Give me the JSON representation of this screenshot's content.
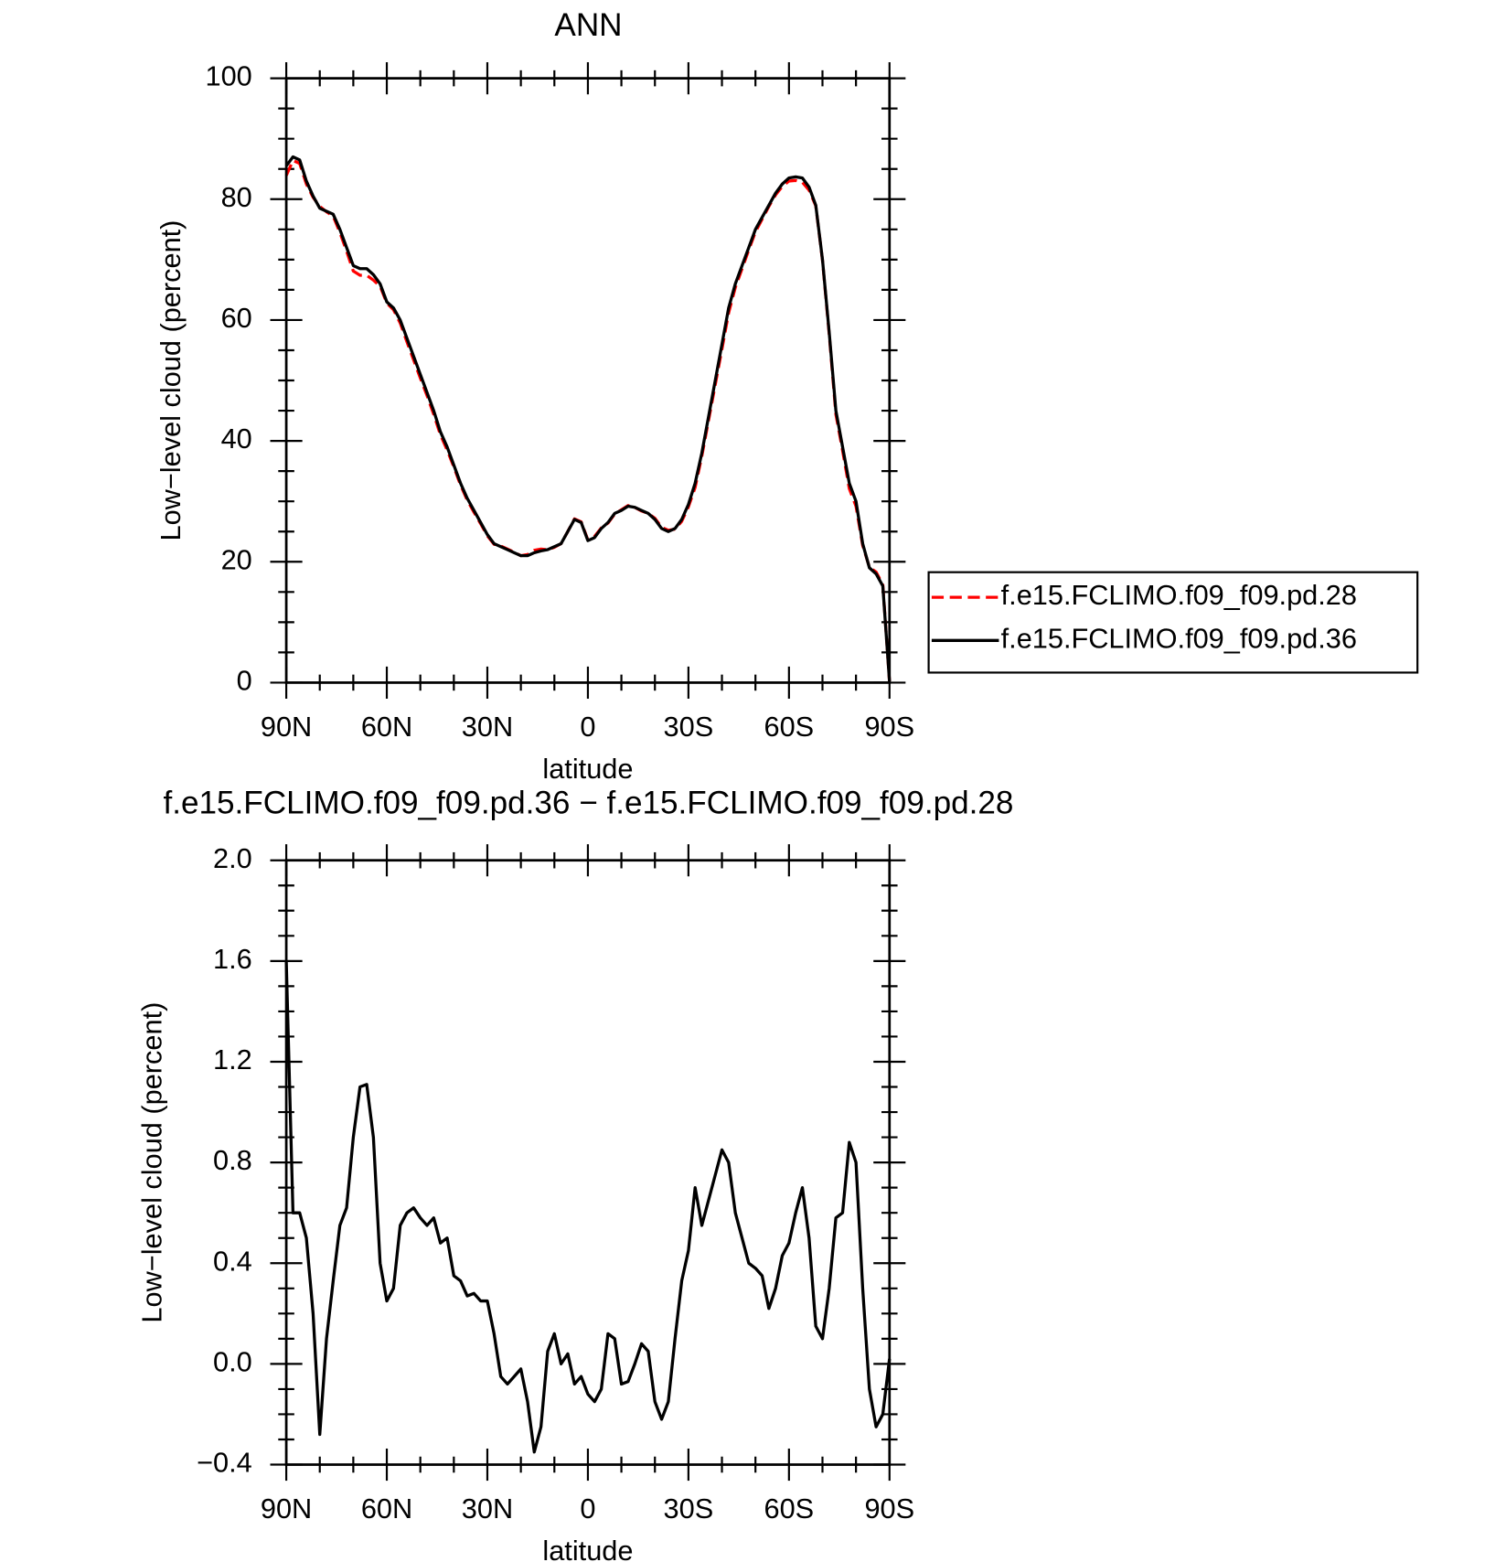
{
  "chart_data": [
    {
      "type": "line",
      "title": "ANN",
      "xlabel": "latitude",
      "ylabel": "Low−level cloud (percent)",
      "x": [
        90,
        88,
        86,
        84,
        82,
        80,
        78,
        76,
        74,
        72,
        70,
        68,
        66,
        64,
        62,
        60,
        58,
        56,
        54,
        52,
        50,
        48,
        46,
        44,
        42,
        40,
        38,
        36,
        34,
        32,
        30,
        28,
        26,
        24,
        22,
        20,
        18,
        16,
        14,
        12,
        10,
        8,
        6,
        4,
        2,
        0,
        -2,
        -4,
        -6,
        -8,
        -10,
        -12,
        -14,
        -16,
        -18,
        -20,
        -22,
        -24,
        -26,
        -28,
        -30,
        -32,
        -34,
        -36,
        -38,
        -40,
        -42,
        -44,
        -46,
        -48,
        -50,
        -52,
        -54,
        -56,
        -58,
        -60,
        -62,
        -64,
        -66,
        -68,
        -70,
        -72,
        -74,
        -76,
        -78,
        -80,
        -82,
        -84,
        -86,
        -88,
        -90
      ],
      "xlim": [
        90,
        -90
      ],
      "xticks": [
        {
          "value": 90,
          "label": "90N"
        },
        {
          "value": 60,
          "label": "60N"
        },
        {
          "value": 30,
          "label": "30N"
        },
        0,
        {
          "value": -30,
          "label": "30S"
        },
        {
          "value": -60,
          "label": "60S"
        },
        {
          "value": -90,
          "label": "90S"
        }
      ],
      "ylim": [
        0,
        100
      ],
      "yticks": [
        0,
        20,
        40,
        60,
        80,
        100
      ],
      "legend": "right",
      "series": [
        {
          "name": "f.e15.FCLIMO.f09_f09.pd.28",
          "color": "#ff0000",
          "linestyle": "dashed",
          "values": [
            83.9,
            86.4,
            85.9,
            82.5,
            80.3,
            78.8,
            77.9,
            77.2,
            74.5,
            71.4,
            68.1,
            67.4,
            67.4,
            66.6,
            65.6,
            62.8,
            61.7,
            59.5,
            56.4,
            53.4,
            50.4,
            47.5,
            44.4,
            41.0,
            38.5,
            35.7,
            32.7,
            30.2,
            28.2,
            26.3,
            24.3,
            22.9,
            22.6,
            22.1,
            21.6,
            21.0,
            21.2,
            21.9,
            22.1,
            22.0,
            22.4,
            23.0,
            25.0,
            27.1,
            26.6,
            23.6,
            24.2,
            25.6,
            26.4,
            27.9,
            28.6,
            29.3,
            29.0,
            28.4,
            28.0,
            27.2,
            25.7,
            25.2,
            25.4,
            26.7,
            29.1,
            32.3,
            37.5,
            43.4,
            49.3,
            55.2,
            61.2,
            65.4,
            68.5,
            71.6,
            74.6,
            76.7,
            78.8,
            80.7,
            82.1,
            83.0,
            83.1,
            82.8,
            81.5,
            78.9,
            69.9,
            57.7,
            44.4,
            38.4,
            32.1,
            29.2,
            22.7,
            19.1,
            18.3,
            16.2,
            0.2
          ]
        },
        {
          "name": "f.e15.FCLIMO.f09_f09.pd.36",
          "color": "#000000",
          "linestyle": "solid",
          "values": [
            85.5,
            87.0,
            86.5,
            83.0,
            80.5,
            78.5,
            78.0,
            77.5,
            75.0,
            72.0,
            69.0,
            68.5,
            68.5,
            67.5,
            66.0,
            63.0,
            62.0,
            60.0,
            57.0,
            54.0,
            51.0,
            48.0,
            45.0,
            41.5,
            39.0,
            36.0,
            33.0,
            30.5,
            28.5,
            26.5,
            24.5,
            23.0,
            22.5,
            22.0,
            21.5,
            21.0,
            21.0,
            21.5,
            21.8,
            22.0,
            22.5,
            23.0,
            25.0,
            27.0,
            26.5,
            23.5,
            24.0,
            25.5,
            26.5,
            28.0,
            28.5,
            29.2,
            29.0,
            28.5,
            28.0,
            27.0,
            25.5,
            25.0,
            25.5,
            27.0,
            29.5,
            33.0,
            38.0,
            44.0,
            50.0,
            56.0,
            62.0,
            66.0,
            69.0,
            72.0,
            75.0,
            77.0,
            79.0,
            81.0,
            82.5,
            83.5,
            83.7,
            83.5,
            82.0,
            79.0,
            70.0,
            58.0,
            45.0,
            39.0,
            33.0,
            30.0,
            23.0,
            19.0,
            18.0,
            16.0,
            0.2
          ]
        }
      ]
    },
    {
      "type": "line",
      "title": "f.e15.FCLIMO.f09_f09.pd.36 − f.e15.FCLIMO.f09_f09.pd.28",
      "xlabel": "latitude",
      "ylabel": "Low−level cloud (percent)",
      "x": [
        90,
        88,
        86,
        84,
        82,
        80,
        78,
        76,
        74,
        72,
        70,
        68,
        66,
        64,
        62,
        60,
        58,
        56,
        54,
        52,
        50,
        48,
        46,
        44,
        42,
        40,
        38,
        36,
        34,
        32,
        30,
        28,
        26,
        24,
        22,
        20,
        18,
        16,
        14,
        12,
        10,
        8,
        6,
        4,
        2,
        0,
        -2,
        -4,
        -6,
        -8,
        -10,
        -12,
        -14,
        -16,
        -18,
        -20,
        -22,
        -24,
        -26,
        -28,
        -30,
        -32,
        -34,
        -36,
        -38,
        -40,
        -42,
        -44,
        -46,
        -48,
        -50,
        -52,
        -54,
        -56,
        -58,
        -60,
        -62,
        -64,
        -66,
        -68,
        -70,
        -72,
        -74,
        -76,
        -78,
        -80,
        -82,
        -84,
        -86,
        -88,
        -90
      ],
      "xlim": [
        90,
        -90
      ],
      "xticks": [
        {
          "value": 90,
          "label": "90N"
        },
        {
          "value": 60,
          "label": "60N"
        },
        {
          "value": 30,
          "label": "30N"
        },
        0,
        {
          "value": -30,
          "label": "30S"
        },
        {
          "value": -60,
          "label": "60S"
        },
        {
          "value": -90,
          "label": "90S"
        }
      ],
      "ylim": [
        -0.4,
        2.0
      ],
      "yticks": [
        {
          "value": -0.4,
          "label": "−0.4"
        },
        {
          "value": 0,
          "label": "0.0"
        },
        0.4,
        0.8,
        1.2,
        1.6,
        {
          "value": 2.0,
          "label": "2.0"
        }
      ],
      "series": [
        {
          "color": "#000000",
          "linestyle": "solid",
          "values": [
            1.6,
            0.6,
            0.6,
            0.5,
            0.2,
            -0.28,
            0.1,
            0.33,
            0.55,
            0.62,
            0.9,
            1.1,
            1.11,
            0.9,
            0.4,
            0.25,
            0.3,
            0.55,
            0.6,
            0.62,
            0.58,
            0.55,
            0.58,
            0.48,
            0.5,
            0.35,
            0.33,
            0.27,
            0.28,
            0.25,
            0.25,
            0.12,
            -0.05,
            -0.08,
            -0.05,
            -0.02,
            -0.15,
            -0.35,
            -0.25,
            0.05,
            0.12,
            0.0,
            0.04,
            -0.08,
            -0.05,
            -0.12,
            -0.15,
            -0.1,
            0.12,
            0.1,
            -0.08,
            -0.07,
            0.0,
            0.08,
            0.05,
            -0.15,
            -0.22,
            -0.15,
            0.1,
            0.33,
            0.45,
            0.7,
            0.55,
            0.65,
            0.75,
            0.85,
            0.8,
            0.6,
            0.5,
            0.4,
            0.38,
            0.35,
            0.22,
            0.3,
            0.43,
            0.48,
            0.6,
            0.7,
            0.5,
            0.15,
            0.1,
            0.3,
            0.58,
            0.6,
            0.88,
            0.8,
            0.3,
            -0.1,
            -0.25,
            -0.2,
            0.02
          ]
        }
      ]
    }
  ]
}
